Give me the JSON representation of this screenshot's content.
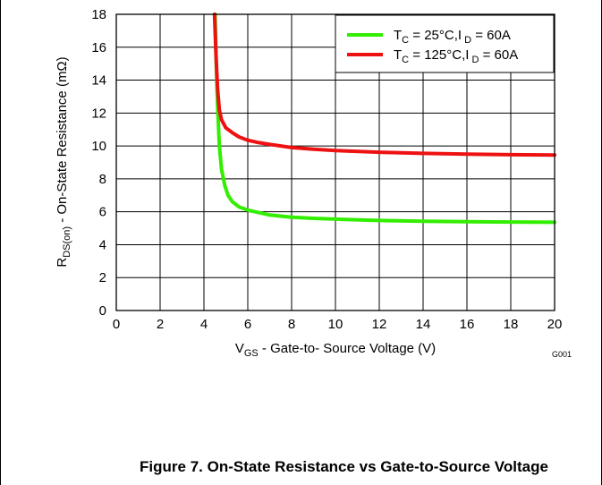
{
  "chart_data": {
    "type": "line",
    "xlabel": {
      "main": "V",
      "sub": "GS",
      "rest": " - Gate-to- Source Voltage (V)"
    },
    "ylabel": {
      "main": "R",
      "sub": "DS(on)",
      "rest": " - On-State Resistance  (mΩ)"
    },
    "xlim": [
      0,
      20
    ],
    "ylim": [
      0,
      18
    ],
    "xticks": [
      "0",
      "2",
      "4",
      "6",
      "8",
      "10",
      "12",
      "14",
      "16",
      "18",
      "20"
    ],
    "yticks": [
      "0",
      "2",
      "4",
      "6",
      "8",
      "10",
      "12",
      "14",
      "16",
      "18"
    ],
    "grid": true,
    "legend_position": "top-right",
    "code_label": "G001",
    "series": [
      {
        "name": "T_C = 25°C, I_D = 60A",
        "legend": {
          "a": "T",
          "a_sub": "C",
          "b": " = 25°C,I",
          "b_sub": " D",
          "c": " = 60A"
        },
        "color": "#33ee00",
        "x": [
          4.51,
          4.56,
          4.62,
          4.7,
          4.8,
          4.95,
          5.1,
          5.3,
          5.6,
          6.0,
          6.5,
          7,
          8,
          9,
          10,
          12,
          14,
          16,
          18,
          20
        ],
        "y": [
          18,
          15,
          12.5,
          10,
          8.6,
          7.6,
          7.0,
          6.6,
          6.3,
          6.1,
          5.95,
          5.8,
          5.67,
          5.6,
          5.55,
          5.47,
          5.42,
          5.4,
          5.38,
          5.36
        ]
      },
      {
        "name": "T_C = 125°C, I_D = 60A",
        "legend": {
          "a": "T",
          "a_sub": "C",
          "b": " = 125°C,I",
          "b_sub": " D",
          "c": " = 60A"
        },
        "color": "#ee1111",
        "x": [
          4.48,
          4.55,
          4.62,
          4.7,
          4.8,
          5.0,
          5.3,
          5.6,
          6.0,
          6.5,
          7,
          8,
          9,
          10,
          12,
          14,
          16,
          18,
          20
        ],
        "y": [
          18,
          15.5,
          13.5,
          12.2,
          11.6,
          11.1,
          10.8,
          10.55,
          10.35,
          10.2,
          10.1,
          9.9,
          9.8,
          9.72,
          9.62,
          9.55,
          9.5,
          9.47,
          9.45
        ]
      }
    ]
  },
  "caption": "Figure 7. On-State Resistance vs Gate-to-Source Voltage"
}
